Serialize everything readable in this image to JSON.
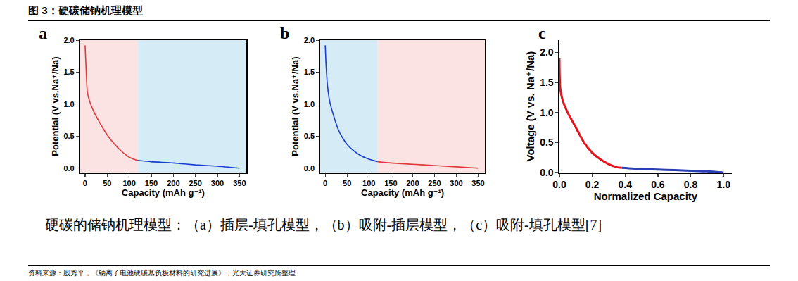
{
  "header": {
    "title": "图 3：硬碳储钠机理模型"
  },
  "chart_data": [
    {
      "type": "line",
      "label": "a",
      "x_label": "Capacity (mAh g⁻¹)",
      "y_label": "Potential (V vs.Na⁺/Na)",
      "xlim": [
        -12,
        366
      ],
      "ylim": [
        -0.07,
        2.0
      ],
      "xticks": [
        0,
        50,
        100,
        150,
        200,
        250,
        300,
        350
      ],
      "yticks": [
        {
          "value": 0,
          "label": "0.0"
        },
        {
          "value": 0.5,
          "label": "0.5"
        },
        {
          "value": 1,
          "label": "1.0"
        },
        {
          "value": 1.5,
          "label": "1.5"
        },
        {
          "value": 2,
          "label": "2.0"
        }
      ],
      "bands": [
        {
          "x": [
            -12,
            120
          ],
          "color": "#fbe3e3"
        },
        {
          "x": [
            120,
            366
          ],
          "color": "#d5ebf5"
        }
      ],
      "series": [
        {
          "color": "#e0393e",
          "x": [
            0,
            2,
            5,
            10,
            20,
            30,
            40,
            50,
            60,
            70,
            80,
            90,
            100,
            110,
            120
          ],
          "values": [
            1.92,
            1.6,
            1.2,
            1.05,
            0.88,
            0.75,
            0.63,
            0.52,
            0.43,
            0.35,
            0.28,
            0.22,
            0.17,
            0.14,
            0.12
          ]
        },
        {
          "color": "#1a3ecf",
          "x": [
            120,
            150,
            200,
            250,
            300,
            350
          ],
          "values": [
            0.12,
            0.1,
            0.08,
            0.05,
            0.03,
            0.0
          ]
        }
      ]
    },
    {
      "type": "line",
      "label": "b",
      "x_label": "Capacity (mAh g⁻¹)",
      "y_label": "Potential (V vs.Na⁺/Na)",
      "xlim": [
        -12,
        366
      ],
      "ylim": [
        -0.07,
        2.0
      ],
      "xticks": [
        0,
        50,
        100,
        150,
        200,
        250,
        300,
        350
      ],
      "yticks": [
        {
          "value": 0,
          "label": "0.0"
        },
        {
          "value": 0.5,
          "label": "0.5"
        },
        {
          "value": 1,
          "label": "1.0"
        },
        {
          "value": 1.5,
          "label": "1.5"
        },
        {
          "value": 2,
          "label": "2.0"
        }
      ],
      "bands": [
        {
          "x": [
            -12,
            120
          ],
          "color": "#d5ebf5"
        },
        {
          "x": [
            120,
            366
          ],
          "color": "#fbe3e3"
        }
      ],
      "series": [
        {
          "color": "#1a3ecf",
          "x": [
            0,
            2,
            5,
            10,
            20,
            30,
            40,
            50,
            60,
            80,
            100,
            120
          ],
          "values": [
            1.92,
            1.6,
            1.3,
            1.05,
            0.8,
            0.6,
            0.47,
            0.37,
            0.3,
            0.2,
            0.14,
            0.1
          ]
        },
        {
          "color": "#e0393e",
          "x": [
            120,
            150,
            200,
            250,
            300,
            350
          ],
          "values": [
            0.1,
            0.08,
            0.06,
            0.04,
            0.02,
            0.0
          ]
        }
      ]
    },
    {
      "type": "line",
      "label": "c",
      "x_label": "Normalized Capacity",
      "y_label": "Voltage (V vs. Na⁺/Na)",
      "xlim": [
        0,
        1.05
      ],
      "ylim": [
        0,
        2.2
      ],
      "xticks": [
        {
          "value": 0,
          "label": "0.0"
        },
        {
          "value": 0.2,
          "label": "0.2"
        },
        {
          "value": 0.4,
          "label": "0.4"
        },
        {
          "value": 0.6,
          "label": "0.6"
        },
        {
          "value": 0.8,
          "label": "0.8"
        },
        {
          "value": 1,
          "label": "1.0"
        }
      ],
      "yticks": [
        {
          "value": 0,
          "label": "0.0"
        },
        {
          "value": 0.5,
          "label": "0.5"
        },
        {
          "value": 1,
          "label": "1.0"
        },
        {
          "value": 1.5,
          "label": "1.5"
        },
        {
          "value": 2,
          "label": "2.0"
        }
      ],
      "series": [
        {
          "color": "#e8141c",
          "x": [
            0,
            0.005,
            0.02,
            0.05,
            0.1,
            0.15,
            0.2,
            0.25,
            0.3,
            0.35,
            0.38
          ],
          "values": [
            1.9,
            1.4,
            1.2,
            1.0,
            0.75,
            0.5,
            0.33,
            0.22,
            0.14,
            0.09,
            0.08
          ]
        },
        {
          "color": "#2b3fb5",
          "x": [
            0.38,
            0.5,
            0.6,
            0.7,
            0.8,
            0.9,
            1.0
          ],
          "values": [
            0.08,
            0.06,
            0.05,
            0.04,
            0.03,
            0.02,
            0.0
          ]
        }
      ]
    }
  ],
  "caption": "硬碳的储钠机理模型：（a）插层-填孔模型，（b）吸附-插层模型，（c）吸附-填孔模型[7]",
  "source": "资料来源：殷秀平，《钠离子电池硬碳基负极材料的研究进展》，光大证券研究所整理"
}
